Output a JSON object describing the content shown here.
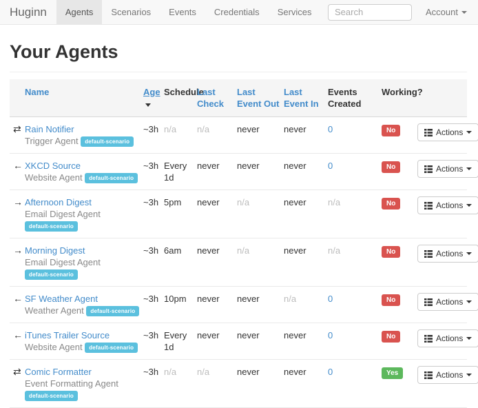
{
  "navbar": {
    "brand": "Huginn",
    "items": [
      {
        "label": "Agents",
        "active": true
      },
      {
        "label": "Scenarios",
        "active": false
      },
      {
        "label": "Events",
        "active": false
      },
      {
        "label": "Credentials",
        "active": false
      },
      {
        "label": "Services",
        "active": false
      }
    ],
    "search_placeholder": "Search",
    "account_label": "Account"
  },
  "page_title": "Your Agents",
  "colors": {
    "link": "#428bca",
    "scenario_badge": "#5bc0de",
    "danger": "#d9534f",
    "success": "#5cb85c",
    "muted_text": "#bcbcbc",
    "navbar_bg": "#f8f8f8"
  },
  "icon_glyphs": {
    "transfer-icon": "⇄",
    "arrow-left-icon": "←",
    "arrow-right-icon": "→"
  },
  "table": {
    "headers": {
      "name": "Name",
      "age": "Age",
      "schedule": "Schedule",
      "last_check": "Last Check",
      "last_event_out": "Last Event Out",
      "last_event_in": "Last Event In",
      "events_created": "Events Created",
      "working": "Working?"
    },
    "sorted_column": "age",
    "sort_direction": "desc",
    "actions_label": "Actions",
    "rows": [
      {
        "icon": "transfer-icon",
        "name": "Rain Notifier",
        "type": "Trigger Agent",
        "scenario": "default-scenario",
        "age": "~3h",
        "schedule": {
          "text": "n/a",
          "style": "muted"
        },
        "last_check": {
          "text": "n/a",
          "style": "muted"
        },
        "last_event_out": {
          "text": "never",
          "style": "normal"
        },
        "last_event_in": {
          "text": "never",
          "style": "normal"
        },
        "events_created": {
          "text": "0",
          "style": "link"
        },
        "working": {
          "label": "No",
          "status": "danger"
        }
      },
      {
        "icon": "arrow-left-icon",
        "name": "XKCD Source",
        "type": "Website Agent",
        "scenario": "default-scenario",
        "age": "~3h",
        "schedule": {
          "text": "Every 1d",
          "style": "normal"
        },
        "last_check": {
          "text": "never",
          "style": "normal"
        },
        "last_event_out": {
          "text": "never",
          "style": "normal"
        },
        "last_event_in": {
          "text": "never",
          "style": "normal"
        },
        "events_created": {
          "text": "0",
          "style": "link"
        },
        "working": {
          "label": "No",
          "status": "danger"
        }
      },
      {
        "icon": "arrow-right-icon",
        "name": "Afternoon Digest",
        "type": "Email Digest Agent",
        "scenario": "default-scenario",
        "age": "~3h",
        "schedule": {
          "text": "5pm",
          "style": "normal"
        },
        "last_check": {
          "text": "never",
          "style": "normal"
        },
        "last_event_out": {
          "text": "n/a",
          "style": "muted"
        },
        "last_event_in": {
          "text": "never",
          "style": "normal"
        },
        "events_created": {
          "text": "n/a",
          "style": "muted"
        },
        "working": {
          "label": "No",
          "status": "danger"
        }
      },
      {
        "icon": "arrow-right-icon",
        "name": "Morning Digest",
        "type": "Email Digest Agent",
        "scenario": "default-scenario",
        "age": "~3h",
        "schedule": {
          "text": "6am",
          "style": "normal"
        },
        "last_check": {
          "text": "never",
          "style": "normal"
        },
        "last_event_out": {
          "text": "n/a",
          "style": "muted"
        },
        "last_event_in": {
          "text": "never",
          "style": "normal"
        },
        "events_created": {
          "text": "n/a",
          "style": "muted"
        },
        "working": {
          "label": "No",
          "status": "danger"
        }
      },
      {
        "icon": "arrow-left-icon",
        "name": "SF Weather Agent",
        "type": "Weather Agent",
        "scenario": "default-scenario",
        "age": "~3h",
        "schedule": {
          "text": "10pm",
          "style": "normal"
        },
        "last_check": {
          "text": "never",
          "style": "normal"
        },
        "last_event_out": {
          "text": "never",
          "style": "normal"
        },
        "last_event_in": {
          "text": "n/a",
          "style": "muted"
        },
        "events_created": {
          "text": "0",
          "style": "link"
        },
        "working": {
          "label": "No",
          "status": "danger"
        }
      },
      {
        "icon": "arrow-left-icon",
        "name": "iTunes Trailer Source",
        "type": "Website Agent",
        "scenario": "default-scenario",
        "age": "~3h",
        "schedule": {
          "text": "Every 1d",
          "style": "normal"
        },
        "last_check": {
          "text": "never",
          "style": "normal"
        },
        "last_event_out": {
          "text": "never",
          "style": "normal"
        },
        "last_event_in": {
          "text": "never",
          "style": "normal"
        },
        "events_created": {
          "text": "0",
          "style": "link"
        },
        "working": {
          "label": "No",
          "status": "danger"
        }
      },
      {
        "icon": "transfer-icon",
        "name": "Comic Formatter",
        "type": "Event Formatting Agent",
        "scenario": "default-scenario",
        "age": "~3h",
        "schedule": {
          "text": "n/a",
          "style": "muted"
        },
        "last_check": {
          "text": "n/a",
          "style": "muted"
        },
        "last_event_out": {
          "text": "never",
          "style": "normal"
        },
        "last_event_in": {
          "text": "never",
          "style": "normal"
        },
        "events_created": {
          "text": "0",
          "style": "link"
        },
        "working": {
          "label": "Yes",
          "status": "success"
        }
      }
    ]
  }
}
